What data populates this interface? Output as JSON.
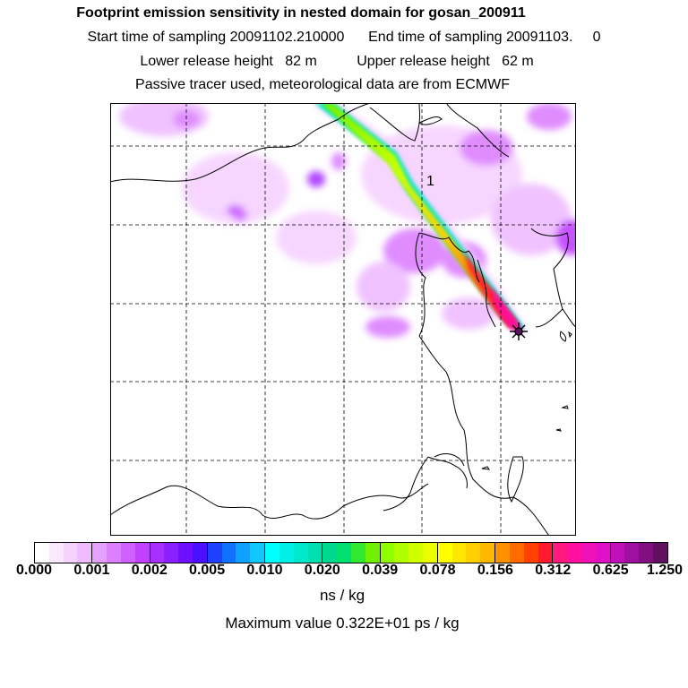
{
  "header": {
    "title": "Footprint emission sensitivity in nested domain for gosan_200911",
    "line2": "Start time of sampling 20091102.210000      End time of sampling 20091103.     0",
    "line3": "Lower release height   82 m          Upper release height   62 m",
    "line4": "Passive tracer used, meteorological data are from ECMWF"
  },
  "map": {
    "label": "1",
    "receptor_marker": "star-icon"
  },
  "colorbar": {
    "ticks": [
      "0.000",
      "0.001",
      "0.002",
      "0.005",
      "0.010",
      "0.020",
      "0.039",
      "0.078",
      "0.156",
      "0.312",
      "0.625",
      "1.250"
    ],
    "segments": [
      [
        "#ffffff",
        "#fbe8ff",
        "#f6d2ff",
        "#efbcff"
      ],
      [
        "#e6a0ff",
        "#dc80ff",
        "#cf60ff",
        "#c240ff"
      ],
      [
        "#a830ff",
        "#8a20ff",
        "#6c10ff",
        "#4a10ff"
      ],
      [
        "#2040ff",
        "#1070ff",
        "#10a0ff",
        "#10c8ff"
      ],
      [
        "#00ffff",
        "#00f0e8",
        "#00e8cc",
        "#00e0b0"
      ],
      [
        "#00d890",
        "#00e070",
        "#30e830",
        "#70f000"
      ],
      [
        "#90ff00",
        "#b0ff00",
        "#d0ff00",
        "#eaff00"
      ],
      [
        "#ffff00",
        "#ffe800",
        "#ffd000",
        "#ffb800"
      ],
      [
        "#ff9000",
        "#ff6a00",
        "#ff4000",
        "#ff1a30"
      ],
      [
        "#ff1a80",
        "#ff10a0",
        "#f010b8",
        "#e010c8"
      ],
      [
        "#c010b8",
        "#a010a0",
        "#801080",
        "#601060"
      ]
    ],
    "units": "ns / kg",
    "max_value": "Maximum value  0.322E+01 ps / kg"
  }
}
